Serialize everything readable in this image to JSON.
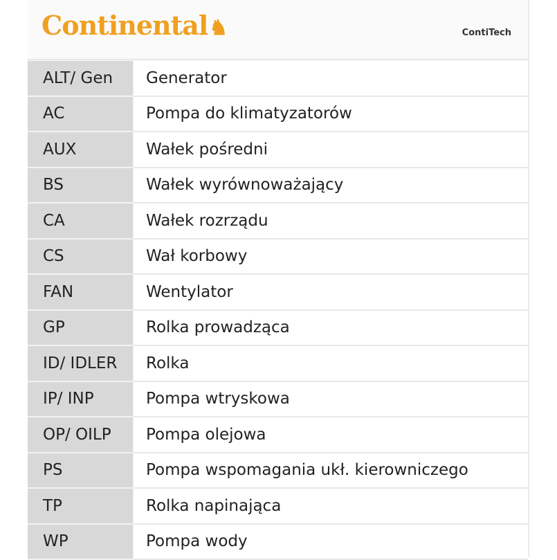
{
  "header": {
    "logo_text": "Continental",
    "logo_icon": "horse-icon",
    "brand_secondary": "ContiTech",
    "logo_color": "#f0a020"
  },
  "rows": [
    {
      "abbr": "ALT/ Gen",
      "desc": "Generator"
    },
    {
      "abbr": "AC",
      "desc": "Pompa do klimatyzatorów"
    },
    {
      "abbr": "AUX",
      "desc": "Wałek  pośredni"
    },
    {
      "abbr": "BS",
      "desc": "Wałek  wyrównoważający"
    },
    {
      "abbr": "CA",
      "desc": "Wałek rozrządu"
    },
    {
      "abbr": "CS",
      "desc": "Wał korbowy"
    },
    {
      "abbr": "FAN",
      "desc": "Wentylator"
    },
    {
      "abbr": "GP",
      "desc": "Rolka prowadząca"
    },
    {
      "abbr": "ID/ IDLER",
      "desc": "Rolka"
    },
    {
      "abbr": "IP/ INP",
      "desc": "Pompa wtryskowa"
    },
    {
      "abbr": "OP/ OILP",
      "desc": "Pompa olejowa"
    },
    {
      "abbr": "PS",
      "desc": "Pompa wspomagania ukł. kierowniczego"
    },
    {
      "abbr": "TP",
      "desc": "Rolka napinająca"
    },
    {
      "abbr": "WP",
      "desc": "Pompa wody"
    }
  ]
}
